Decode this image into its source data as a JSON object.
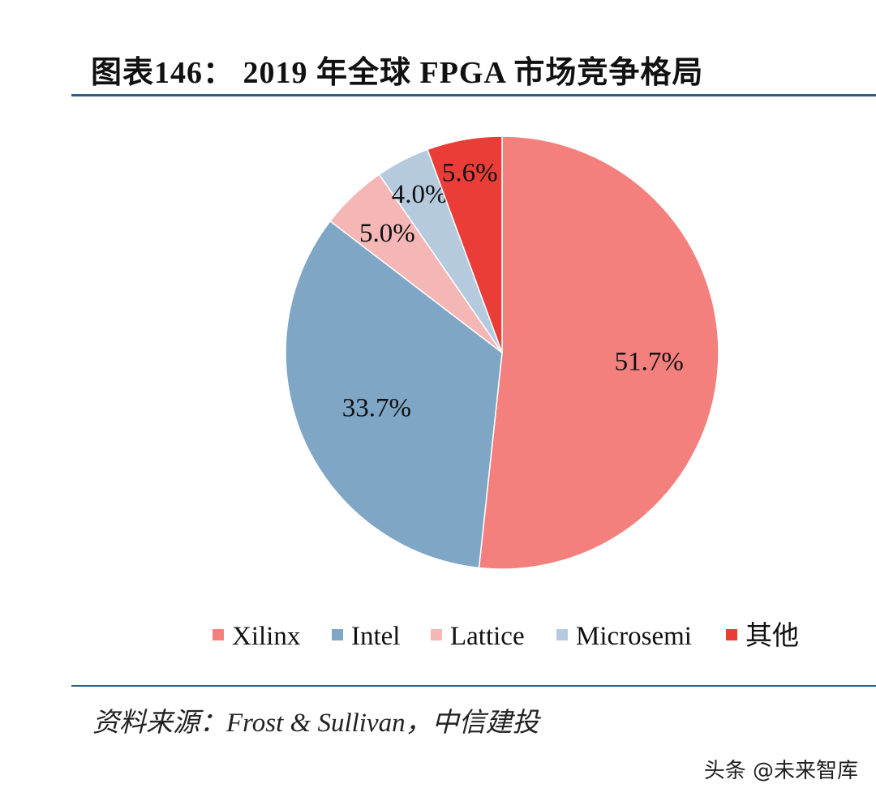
{
  "title": "图表146：   2019 年全球 FPGA 市场竞争格局",
  "source": "资料来源：Frost & Sullivan，中信建投",
  "watermark": "头条 @未来智库",
  "chart_data": {
    "type": "pie",
    "title": "2019 年全球 FPGA 市场竞争格局",
    "legend_position": "bottom",
    "slices": [
      {
        "label": "Xilinx",
        "value": 51.7,
        "display": "51.7%",
        "color": "#f4807d"
      },
      {
        "label": "Intel",
        "value": 33.7,
        "display": "33.7%",
        "color": "#7fa6c5"
      },
      {
        "label": "Lattice",
        "value": 5.0,
        "display": "5.0%",
        "color": "#f5b7b5"
      },
      {
        "label": "Microsemi",
        "value": 4.0,
        "display": "4.0%",
        "color": "#b6cade"
      },
      {
        "label": "其他",
        "value": 5.6,
        "display": "5.6%",
        "color": "#ea3d37"
      }
    ]
  }
}
